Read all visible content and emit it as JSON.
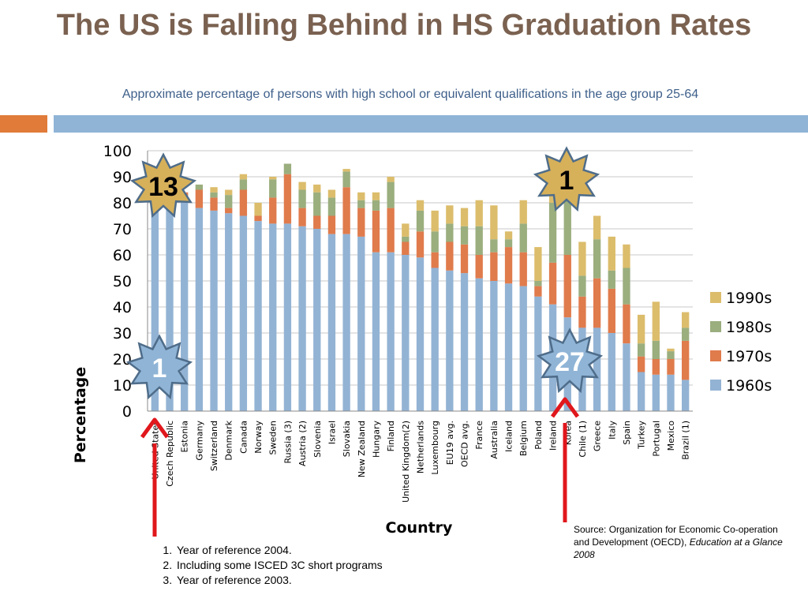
{
  "slide": {
    "title": "The US is Falling Behind in HS Graduation Rates",
    "subtitle": "Approximate percentage of persons with high school or equivalent qualifications in the age group 25-64",
    "footnotes": [
      "Year of reference 2004.",
      "Including some ISCED 3C short programs",
      "Year of reference 2003."
    ],
    "source_text": "Source:  Organization for Economic Co-operation and Development (OECD),",
    "source_pub": "Education at a Glance 2008"
  },
  "badges": [
    {
      "label": "13",
      "color": "#d7b05a"
    },
    {
      "label": "1",
      "color": "#d7b05a"
    },
    {
      "label": "1",
      "color": "#8fb4d6"
    },
    {
      "label": "27",
      "color": "#8fb4d6"
    }
  ],
  "colors": {
    "1960s": "#93b3d4",
    "1970s": "#e07b4c",
    "1980s": "#9bae7e",
    "1990s": "#dcbd6c",
    "arrow": "#e0171c"
  },
  "chart_data": {
    "type": "bar",
    "stacked": true,
    "xlabel": "Country",
    "ylabel": "Percentage",
    "ylim": [
      0,
      100
    ],
    "yticks": [
      0,
      10,
      20,
      30,
      40,
      50,
      60,
      70,
      80,
      90,
      100
    ],
    "grid": true,
    "legend_position": "right",
    "categories": [
      "United States",
      "Czech Republic",
      "Estonia",
      "Germany",
      "Switzerland",
      "Denmark",
      "Canada",
      "Norway",
      "Sweden",
      "Russia (3)",
      "Austria (2)",
      "Slovenia",
      "Israel",
      "Slovakia",
      "New Zealand",
      "Hungary",
      "Finland",
      "United Kingdom(2)",
      "Netherlands",
      "Luxembourg",
      "EU19 avg.",
      "OECD avg.",
      "France",
      "Australia",
      "Iceland",
      "Belgium",
      "Poland",
      "Ireland",
      "Korea",
      "Chile (1)",
      "Greece",
      "Italy",
      "Spain",
      "Turkey",
      "Portugal",
      "Mexico",
      "Brazil (1)"
    ],
    "series": [
      {
        "name": "1960s",
        "values": [
          86,
          85,
          81,
          78,
          77,
          76,
          75,
          73,
          72,
          72,
          71,
          70,
          68,
          68,
          67,
          61,
          61,
          60,
          59,
          55,
          54,
          53,
          51,
          50,
          49,
          48,
          44,
          41,
          36,
          32,
          32,
          30,
          26,
          15,
          14,
          14,
          12
        ]
      },
      {
        "name": "1970s",
        "values": [
          1,
          2,
          3,
          7,
          5,
          2,
          10,
          2,
          10,
          19,
          7,
          5,
          7,
          18,
          11,
          16,
          17,
          5,
          10,
          6,
          11,
          11,
          9,
          11,
          14,
          13,
          4,
          16,
          24,
          12,
          19,
          17,
          15,
          6,
          6,
          6,
          15
        ]
      },
      {
        "name": "1980s",
        "values": [
          0,
          0,
          0,
          2,
          2,
          5,
          4,
          0,
          7,
          4,
          7,
          9,
          7,
          6,
          3,
          4,
          10,
          2,
          8,
          8,
          7,
          7,
          11,
          5,
          3,
          11,
          2,
          23,
          23,
          8,
          15,
          7,
          14,
          5,
          7,
          3,
          5
        ]
      },
      {
        "name": "1990s",
        "values": [
          0,
          0,
          0,
          0,
          2,
          2,
          2,
          5,
          1,
          0,
          3,
          3,
          3,
          1,
          3,
          3,
          2,
          5,
          4,
          8,
          7,
          7,
          10,
          13,
          3,
          9,
          13,
          5,
          2,
          13,
          9,
          13,
          9,
          11,
          15,
          1,
          6
        ]
      }
    ]
  }
}
